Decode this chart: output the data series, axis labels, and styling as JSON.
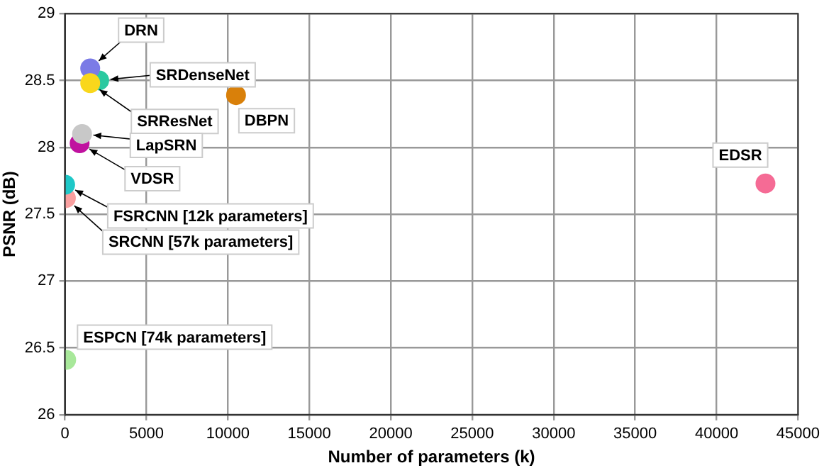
{
  "chart_data": {
    "type": "scatter",
    "xlabel": "Number of parameters (k)",
    "ylabel": "PSNR (dB)",
    "xlim": [
      0,
      45000
    ],
    "xticks": [
      0,
      5000,
      10000,
      15000,
      20000,
      25000,
      30000,
      35000,
      40000,
      45000
    ],
    "ylim": [
      26,
      29
    ],
    "yticks": [
      26,
      26.5,
      27,
      27.5,
      28,
      28.5,
      29
    ],
    "grid": true,
    "legend": false,
    "marker": "circle",
    "series": [
      {
        "name": "DRN",
        "color": "#7b7be6",
        "x": [
          1550
        ],
        "values": [
          28.59
        ]
      },
      {
        "name": "SRDenseNet",
        "color": "#2bc9a0",
        "x": [
          2100
        ],
        "values": [
          28.5
        ]
      },
      {
        "name": "SRResNet",
        "color": "#f9d71c",
        "x": [
          1550
        ],
        "values": [
          28.48
        ]
      },
      {
        "name": "LapSRN",
        "color": "#c8c8c8",
        "x": [
          1050
        ],
        "values": [
          28.1
        ]
      },
      {
        "name": "VDSR",
        "color": "#c0119f",
        "x": [
          900
        ],
        "values": [
          28.03
        ]
      },
      {
        "name": "FSRCNN [12k parameters]",
        "color": "#1fc8c8",
        "x": [
          12
        ],
        "values": [
          27.72
        ]
      },
      {
        "name": "SRCNN [57k parameters]",
        "color": "#f9a0a0",
        "x": [
          57
        ],
        "values": [
          27.62
        ]
      },
      {
        "name": "ESPCN [74k parameters]",
        "color": "#a8e89a",
        "x": [
          74
        ],
        "values": [
          26.41
        ]
      },
      {
        "name": "DBPN",
        "color": "#d9800a",
        "x": [
          10500
        ],
        "values": [
          28.39
        ]
      },
      {
        "name": "EDSR",
        "color": "#f56b95",
        "x": [
          43000
        ],
        "values": [
          27.73
        ]
      }
    ]
  }
}
